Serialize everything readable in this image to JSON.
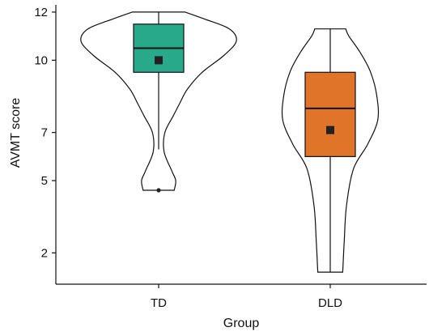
{
  "chart_data": {
    "type": "violin",
    "xlabel": "Group",
    "ylabel": "AVMT score",
    "ylim": [
      0.7,
      12.3
    ],
    "y_ticks": [
      2,
      5,
      7,
      10,
      12
    ],
    "categories": [
      "TD",
      "DLD"
    ],
    "groups": [
      {
        "name": "TD",
        "color": "#27a98a",
        "box": {
          "q1": 9.5,
          "median": 10.5,
          "q3": 11.5
        },
        "whisker_low": 6.3,
        "whisker_high": 12.0,
        "mean": 10.0,
        "outliers": [
          4.6
        ],
        "violin_range": [
          4.6,
          12.0
        ],
        "violin_profile": [
          [
            4.6,
            0.2
          ],
          [
            5.0,
            0.22
          ],
          [
            5.4,
            0.17
          ],
          [
            6.2,
            0.07
          ],
          [
            7.0,
            0.08
          ],
          [
            7.7,
            0.19
          ],
          [
            8.2,
            0.27
          ],
          [
            8.8,
            0.37
          ],
          [
            9.5,
            0.56
          ],
          [
            10.2,
            0.84
          ],
          [
            10.8,
            1.0
          ],
          [
            11.3,
            0.91
          ],
          [
            11.7,
            0.6
          ],
          [
            12.0,
            0.34
          ]
        ]
      },
      {
        "name": "DLD",
        "color": "#e07428",
        "box": {
          "q1": 6.0,
          "median": 8.0,
          "q3": 9.5
        },
        "whisker_low": 1.2,
        "whisker_high": 11.3,
        "mean": 7.1,
        "outliers": [],
        "violin_range": [
          1.2,
          11.3
        ],
        "violin_profile": [
          [
            1.2,
            0.16
          ],
          [
            2.5,
            0.18
          ],
          [
            4.0,
            0.21
          ],
          [
            5.5,
            0.3
          ],
          [
            6.5,
            0.48
          ],
          [
            7.5,
            0.61
          ],
          [
            8.5,
            0.6
          ],
          [
            9.5,
            0.52
          ],
          [
            10.3,
            0.39
          ],
          [
            11.0,
            0.24
          ],
          [
            11.3,
            0.2
          ]
        ]
      }
    ]
  }
}
